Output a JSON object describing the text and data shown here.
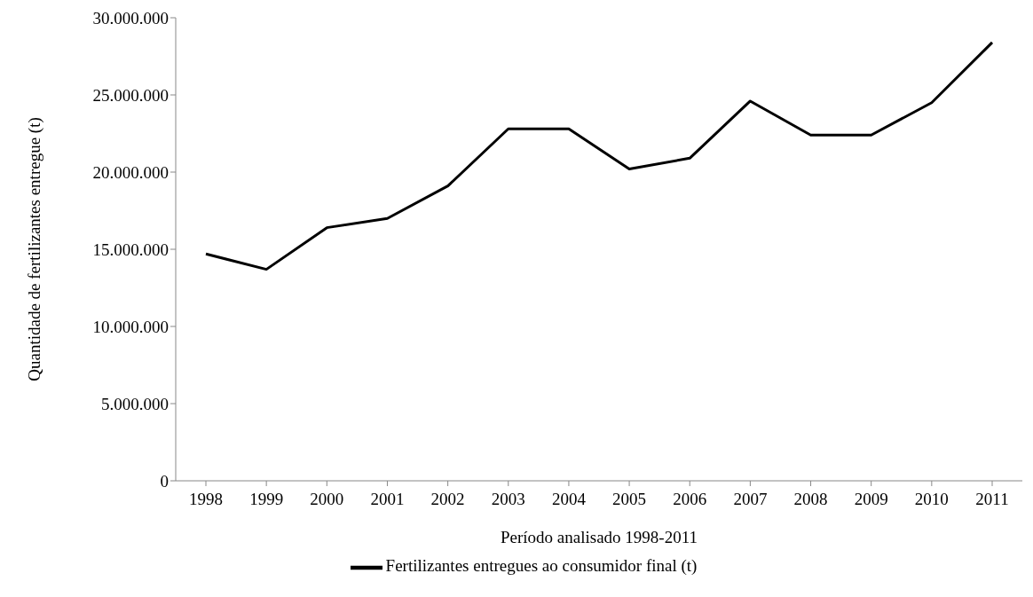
{
  "chart_data": {
    "type": "line",
    "xlabel": "Período analisado 1998-2011",
    "ylabel": "Quantidade de fertilizantes entregue (t)",
    "categories": [
      "1998",
      "1999",
      "2000",
      "2001",
      "2002",
      "2003",
      "2004",
      "2005",
      "2006",
      "2007",
      "2008",
      "2009",
      "2010",
      "2011"
    ],
    "series": [
      {
        "name": "Fertilizantes entregues ao consumidor final (t)",
        "color": "#000000",
        "values": [
          14700000,
          13700000,
          16400000,
          17000000,
          19100000,
          22800000,
          22800000,
          20200000,
          20900000,
          24600000,
          22400000,
          22400000,
          24500000,
          28400000
        ]
      }
    ],
    "ylim": [
      0,
      30000000
    ],
    "yticks": [
      {
        "value": 0,
        "label": "0"
      },
      {
        "value": 5000000,
        "label": "5.000.000"
      },
      {
        "value": 10000000,
        "label": "10.000.000"
      },
      {
        "value": 15000000,
        "label": "15.000.000"
      },
      {
        "value": 20000000,
        "label": "20.000.000"
      },
      {
        "value": 25000000,
        "label": "25.000.000"
      },
      {
        "value": 30000000,
        "label": "30.000.000"
      }
    ],
    "grid": false,
    "legend": "bottom",
    "marker": "none",
    "line_style": "solid"
  }
}
